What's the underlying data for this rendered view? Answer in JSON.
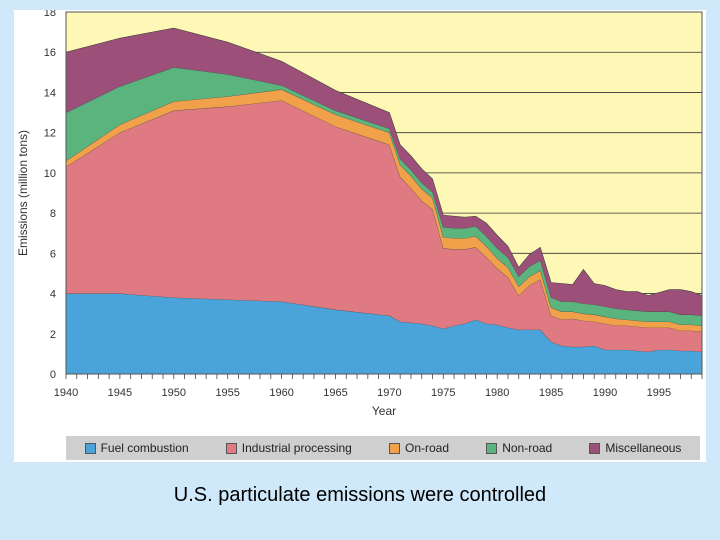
{
  "caption": "U.S. particulate emissions were controlled",
  "chart_data": {
    "type": "area",
    "stacked": true,
    "title": "",
    "xlabel": "Year",
    "ylabel": "Emissions (million tons)",
    "xlim": [
      1940,
      1999
    ],
    "ylim": [
      0,
      18
    ],
    "y_ticks": [
      0,
      2,
      4,
      6,
      8,
      10,
      12,
      14,
      16,
      18
    ],
    "x_tick_labels": [
      1940,
      1945,
      1950,
      1955,
      1960,
      1965,
      1970,
      1975,
      1980,
      1985,
      1990,
      1995
    ],
    "grid": "horizontal",
    "background": "#fdf8b5",
    "legend_position": "bottom",
    "x": [
      1940,
      1945,
      1950,
      1955,
      1960,
      1965,
      1970,
      1971,
      1972,
      1973,
      1974,
      1975,
      1976,
      1977,
      1978,
      1979,
      1980,
      1981,
      1982,
      1983,
      1984,
      1985,
      1986,
      1987,
      1988,
      1989,
      1990,
      1991,
      1992,
      1993,
      1994,
      1995,
      1996,
      1997,
      1998,
      1999
    ],
    "series": [
      {
        "name": "Fuel combustion",
        "color": "#4aa3d9",
        "values": [
          4.0,
          4.0,
          3.8,
          3.7,
          3.6,
          3.2,
          2.9,
          2.6,
          2.55,
          2.5,
          2.4,
          2.25,
          2.4,
          2.5,
          2.7,
          2.5,
          2.45,
          2.3,
          2.2,
          2.2,
          2.2,
          1.6,
          1.4,
          1.35,
          1.35,
          1.4,
          1.2,
          1.2,
          1.2,
          1.15,
          1.1,
          1.2,
          1.2,
          1.15,
          1.15,
          1.1
        ]
      },
      {
        "name": "Industrial processing",
        "color": "#e07a82",
        "values": [
          6.3,
          8.0,
          9.3,
          9.6,
          10.0,
          9.1,
          8.5,
          7.2,
          6.7,
          6.1,
          5.8,
          4.0,
          3.8,
          3.7,
          3.6,
          3.3,
          2.8,
          2.5,
          1.7,
          2.2,
          2.5,
          1.3,
          1.3,
          1.4,
          1.3,
          1.2,
          1.3,
          1.2,
          1.2,
          1.2,
          1.2,
          1.1,
          1.1,
          1.0,
          1.0,
          1.0
        ]
      },
      {
        "name": "On-road",
        "color": "#f0a14a",
        "values": [
          0.3,
          0.4,
          0.45,
          0.5,
          0.55,
          0.6,
          0.6,
          0.6,
          0.6,
          0.6,
          0.55,
          0.55,
          0.55,
          0.55,
          0.55,
          0.55,
          0.5,
          0.5,
          0.45,
          0.45,
          0.45,
          0.4,
          0.4,
          0.35,
          0.35,
          0.35,
          0.35,
          0.35,
          0.3,
          0.3,
          0.3,
          0.3,
          0.3,
          0.3,
          0.3,
          0.3
        ]
      },
      {
        "name": "Non-road",
        "color": "#5bb37e",
        "values": [
          2.4,
          1.9,
          1.7,
          1.1,
          0.2,
          0.2,
          0.2,
          0.3,
          0.3,
          0.3,
          0.3,
          0.5,
          0.5,
          0.5,
          0.5,
          0.5,
          0.5,
          0.5,
          0.5,
          0.5,
          0.5,
          0.5,
          0.5,
          0.5,
          0.5,
          0.5,
          0.5,
          0.5,
          0.5,
          0.5,
          0.5,
          0.5,
          0.5,
          0.5,
          0.5,
          0.5
        ]
      },
      {
        "name": "Miscellaneous",
        "color": "#9c4f78",
        "values": [
          3.0,
          2.4,
          1.95,
          1.6,
          1.2,
          1.0,
          0.8,
          0.7,
          0.7,
          0.7,
          0.65,
          0.6,
          0.6,
          0.55,
          0.5,
          0.65,
          0.65,
          0.55,
          0.45,
          0.6,
          0.65,
          0.75,
          0.9,
          0.85,
          1.7,
          1.05,
          1.05,
          0.95,
          0.9,
          0.95,
          0.8,
          0.95,
          1.1,
          1.25,
          1.15,
          1.0
        ]
      }
    ]
  }
}
